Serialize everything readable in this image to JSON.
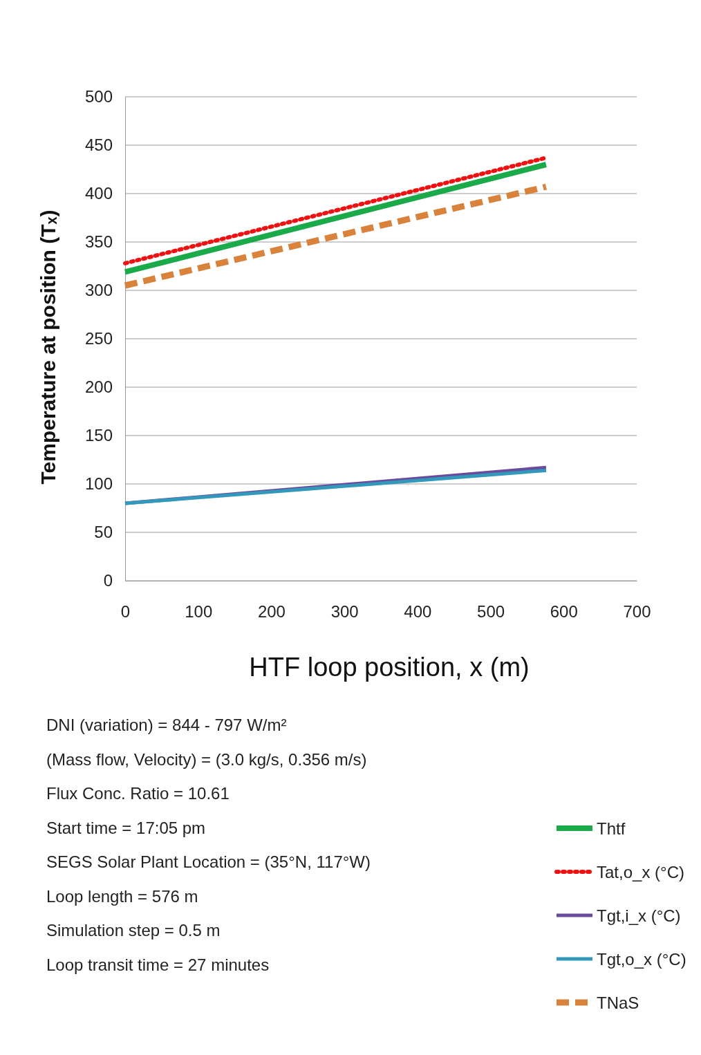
{
  "chart_data": {
    "type": "line",
    "xlabel": "HTF loop position, x (m)",
    "ylabel": "Temperature at position (Tₓ)",
    "xlim": [
      0,
      700
    ],
    "xticks": [
      0,
      100,
      200,
      300,
      400,
      500,
      600,
      700
    ],
    "ylim": [
      0,
      500
    ],
    "yticks": [
      0,
      50,
      100,
      150,
      200,
      250,
      300,
      350,
      400,
      450,
      500
    ],
    "grid": "y",
    "legend": "bottom right",
    "x": [
      0,
      576
    ],
    "series": [
      {
        "name": "Thtf",
        "color": "#1aaa4a",
        "values": [
          319,
          430
        ],
        "line_style": "solid"
      },
      {
        "name": "Tat,o_x (°C)",
        "color": "#ee1111",
        "values": [
          328,
          437
        ],
        "line_style": "dotted"
      },
      {
        "name": "Tgt,i_x (°C)",
        "color": "#6a4c9c",
        "values": [
          80,
          117
        ],
        "line_style": "solid"
      },
      {
        "name": "Tgt,o_x (°C)",
        "color": "#3399bb",
        "values": [
          80,
          114
        ],
        "line_style": "solid"
      },
      {
        "name": "TNaS",
        "color": "#d9823b",
        "values": [
          305,
          407
        ],
        "line_style": "dashed"
      }
    ],
    "annotations": [
      "DNI (variation) = 844 - 797 W/m²",
      "(Mass flow, Velocity) = (3.0 kg/s, 0.356 m/s)",
      "Flux Conc. Ratio = 10.61",
      "Start time = 17:05 pm",
      "SEGS Solar Plant Location = (35°N, 117°W)",
      "Loop length = 576 m",
      "Simulation step = 0.5 m",
      "Loop transit time = 27 minutes"
    ]
  }
}
